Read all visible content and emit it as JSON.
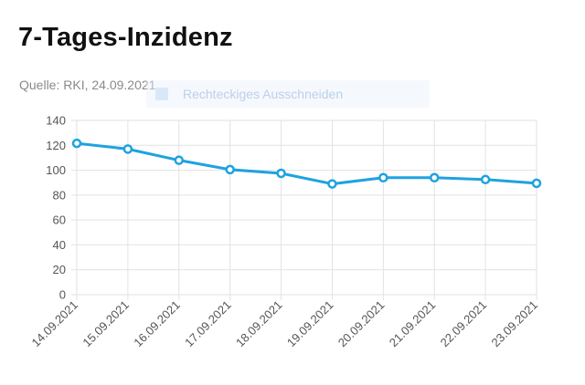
{
  "header": {
    "title": "7-Tages-Inzidenz",
    "source": "Quelle: RKI, 24.09.2021"
  },
  "overlay": {
    "label": "Rechteckiges Ausschneiden"
  },
  "chart_data": {
    "type": "line",
    "title": "7-Tages-Inzidenz",
    "xlabel": "",
    "ylabel": "",
    "categories": [
      "14.09.2021",
      "15.09.2021",
      "16.09.2021",
      "17.09.2021",
      "18.09.2021",
      "19.09.2021",
      "20.09.2021",
      "21.09.2021",
      "22.09.2021",
      "23.09.2021"
    ],
    "series": [
      {
        "values": [
          121.6,
          117,
          108,
          100.5,
          97.5,
          89,
          94,
          94,
          92.5,
          89.5
        ],
        "color": "#1fa2e0"
      }
    ],
    "ylim": [
      0,
      140
    ],
    "yticks": [
      0,
      20,
      40,
      60,
      80,
      100,
      120,
      140
    ],
    "grid": true,
    "legend": "none"
  }
}
